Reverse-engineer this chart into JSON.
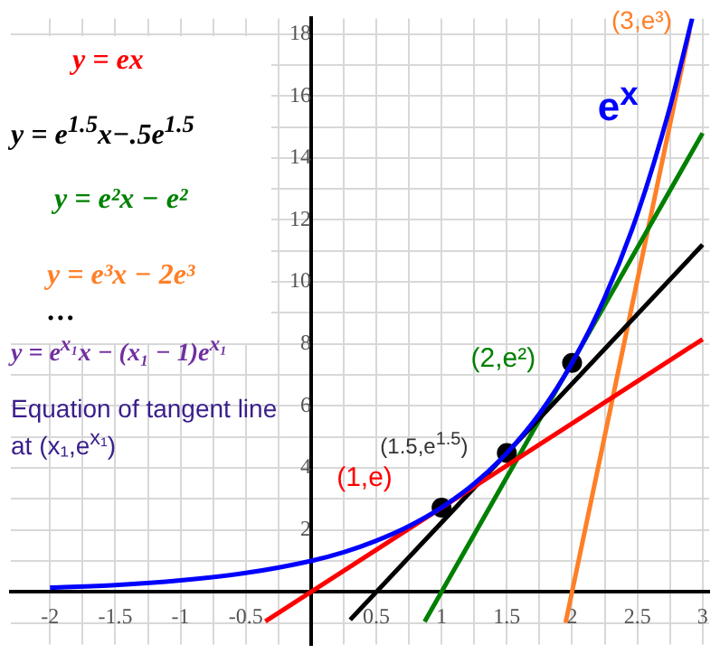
{
  "chart_data": {
    "type": "line",
    "xlim": [
      -2.3,
      3.05
    ],
    "ylim": [
      -1.7,
      18.5
    ],
    "xticks": [
      -2,
      {
        "value": -1.75,
        "label": null
      },
      -1.5,
      {
        "value": -1.25,
        "label": null
      },
      -1,
      {
        "value": -0.75,
        "label": null
      },
      -0.5,
      {
        "value": -0.25,
        "label": null
      },
      {
        "value": 0,
        "label": null
      },
      {
        "value": 0.25,
        "label": null
      },
      0.5,
      {
        "value": 0.75,
        "label": null
      },
      1,
      {
        "value": 1.25,
        "label": null
      },
      1.5,
      {
        "value": 1.75,
        "label": null
      },
      2,
      {
        "value": 2.25,
        "label": null
      },
      2.5,
      {
        "value": 2.75,
        "label": null
      },
      3
    ],
    "yticks": [
      {
        "value": -1,
        "label": null
      },
      {
        "value": 0,
        "label": null
      },
      {
        "value": 1,
        "label": null
      },
      2,
      {
        "value": 3,
        "label": null
      },
      4,
      {
        "value": 5,
        "label": null
      },
      6,
      {
        "value": 7,
        "label": null
      },
      8,
      {
        "value": 9,
        "label": null
      },
      10,
      {
        "value": 11,
        "label": null
      },
      12,
      {
        "value": 13,
        "label": null
      },
      14,
      {
        "value": 15,
        "label": null
      },
      16,
      {
        "value": 17,
        "label": null
      },
      18
    ],
    "grid": true,
    "series": [
      {
        "color": "#0000ff",
        "x": [
          -2,
          -1.5,
          -1,
          -0.5,
          0,
          0.25,
          0.5,
          0.75,
          1,
          1.25,
          1.5,
          1.75,
          2,
          2.25,
          2.5,
          2.75,
          2.92
        ],
        "values": [
          0.14,
          0.22,
          0.37,
          0.61,
          1,
          1.28,
          1.65,
          2.12,
          2.72,
          3.49,
          4.48,
          5.75,
          7.39,
          9.49,
          12.18,
          15.64,
          18.5
        ]
      },
      {
        "color": "#ff0000",
        "x": [
          -0.35,
          3
        ],
        "values": [
          -0.95,
          8.15
        ]
      },
      {
        "color": "#000000",
        "x": [
          0.3,
          3
        ],
        "values": [
          -0.9,
          11.2
        ]
      },
      {
        "color": "#008000",
        "x": [
          0.87,
          3
        ],
        "values": [
          -0.96,
          14.8
        ]
      },
      {
        "color": "#ff7f27",
        "x": [
          1.95,
          2.9
        ],
        "values": [
          -1,
          18.1
        ]
      },
      {
        "type": "scatter",
        "color": "#000000",
        "marker": "circle",
        "x": [
          1,
          1.5,
          2
        ],
        "values": [
          2.72,
          4.48,
          7.39
        ]
      }
    ],
    "annotations": [
      "y = ex",
      "y = e$^{1.5}$x−.5e$^{1.5}$",
      "y = e²x − e²",
      "y = e³x − 2e³",
      "…",
      "y = e$^{x₁}$x − (x₁ − 1)e$^{x₁}$",
      "Equation of tangent line at (x₁,e$^{x₁}$)",
      {
        "text": "(1,e)",
        "x": 1,
        "y": 2.72
      },
      {
        "text": "(1.5,e$^{1.5}$)",
        "x": 1.5,
        "y": 4.48
      },
      {
        "text": "(2,e²)",
        "x": 2,
        "y": 7.39
      },
      "(3,e³)",
      {
        "text": "e$^{x}$",
        "x": 2.75,
        "y": 15.64
      }
    ]
  }
}
